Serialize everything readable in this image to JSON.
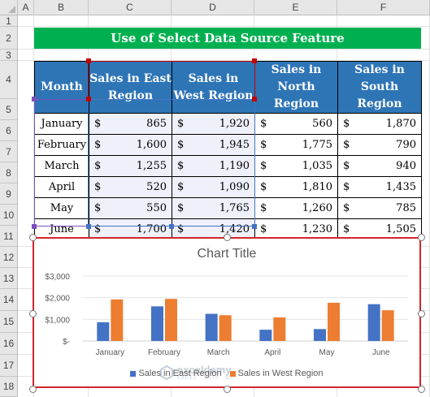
{
  "columns": [
    "A",
    "B",
    "C",
    "D",
    "E",
    "F"
  ],
  "rows": [
    "1",
    "2",
    "3",
    "4",
    "5",
    "6",
    "7",
    "8",
    "9",
    "10",
    "11",
    "12",
    "13",
    "14",
    "15",
    "16",
    "17",
    "18"
  ],
  "banner": "Use of Select Data Source Feature",
  "table": {
    "headers": [
      "Month",
      "Sales in East Region",
      "Sales in West Region",
      "Sales in North Region",
      "Sales in South Region"
    ],
    "currency": "$",
    "rows": [
      {
        "month": "January",
        "values": [
          "865",
          "1,920",
          "560",
          "1,870"
        ]
      },
      {
        "month": "February",
        "values": [
          "1,600",
          "1,945",
          "1,775",
          "790"
        ]
      },
      {
        "month": "March",
        "values": [
          "1,255",
          "1,190",
          "1,035",
          "940"
        ]
      },
      {
        "month": "April",
        "values": [
          "520",
          "1,090",
          "1,810",
          "1,435"
        ]
      },
      {
        "month": "May",
        "values": [
          "550",
          "1,765",
          "1,260",
          "785"
        ]
      },
      {
        "month": "June",
        "values": [
          "1,700",
          "1,420",
          "1,230",
          "1,505"
        ]
      }
    ]
  },
  "selection_colors": {
    "month": "#7c4fbf",
    "series": "#c00000",
    "values": "#4472c4"
  },
  "chart_data": {
    "type": "bar",
    "title": "Chart Title",
    "categories": [
      "January",
      "February",
      "March",
      "April",
      "May",
      "June"
    ],
    "series": [
      {
        "name": "Sales in East Region",
        "values": [
          865,
          1600,
          1255,
          520,
          550,
          1700
        ],
        "color": "#4472c4"
      },
      {
        "name": "Sales in West Region",
        "values": [
          1920,
          1945,
          1190,
          1090,
          1765,
          1420
        ],
        "color": "#ed7d31"
      }
    ],
    "yticks": [
      "$3,000",
      "$2,000",
      "$1,000",
      "$-"
    ],
    "ylim": [
      0,
      3000
    ],
    "legend": "bottom",
    "grid": true
  },
  "watermark": {
    "name": "exceldemy",
    "tagline": "EXCEL · DATA · BI",
    "icon": "exceldemy-logo-icon"
  }
}
